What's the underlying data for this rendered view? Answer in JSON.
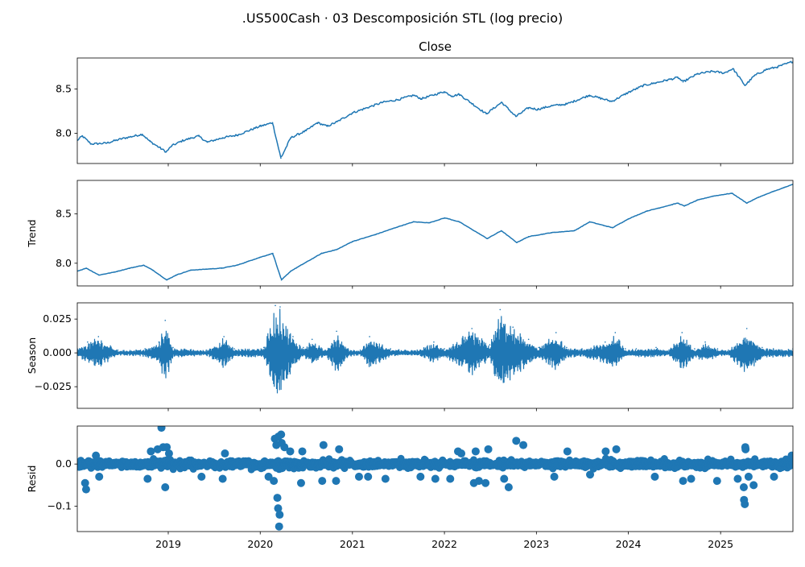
{
  "figure": {
    "suptitle": ".US500Cash · 03 Descomposición STL (log precio)"
  },
  "colors": {
    "line": "#1f77b4",
    "axes": "#000000",
    "background": "#ffffff"
  },
  "chart_data": [
    {
      "id": "close",
      "type": "line",
      "title": "Close",
      "ylabel": "",
      "xlim": [
        "2018-01-05",
        "2025-10-15"
      ],
      "ylim": [
        7.66,
        8.85
      ],
      "yticks": [
        8.0,
        8.5
      ],
      "ytick_labels": [
        "8.0",
        "8.5"
      ],
      "grid": false,
      "x": [
        "2018-01-05",
        "2018-01-25",
        "2018-03-01",
        "2018-05-01",
        "2018-07-01",
        "2018-09-20",
        "2018-10-20",
        "2018-12-24",
        "2019-01-15",
        "2019-03-01",
        "2019-05-01",
        "2019-06-05",
        "2019-08-05",
        "2019-10-01",
        "2019-12-31",
        "2020-02-19",
        "2020-03-23",
        "2020-05-01",
        "2020-07-01",
        "2020-08-15",
        "2020-09-23",
        "2020-11-01",
        "2020-12-31",
        "2021-03-01",
        "2021-05-01",
        "2021-07-01",
        "2021-09-01",
        "2021-10-01",
        "2021-12-31",
        "2022-02-01",
        "2022-03-01",
        "2022-06-16",
        "2022-08-16",
        "2022-10-12",
        "2022-12-01",
        "2023-01-05",
        "2023-03-01",
        "2023-05-01",
        "2023-07-31",
        "2023-10-27",
        "2023-12-31",
        "2024-03-01",
        "2024-04-19",
        "2024-06-01",
        "2024-07-16",
        "2024-08-05",
        "2024-10-01",
        "2024-12-01",
        "2025-01-15",
        "2025-02-19",
        "2025-04-08",
        "2025-05-15",
        "2025-07-01",
        "2025-08-15",
        "2025-10-15"
      ],
      "values": [
        7.92,
        7.97,
        7.88,
        7.89,
        7.94,
        7.99,
        7.91,
        7.79,
        7.86,
        7.92,
        7.97,
        7.9,
        7.95,
        7.98,
        8.08,
        8.12,
        7.72,
        7.95,
        8.03,
        8.12,
        8.08,
        8.13,
        8.23,
        8.29,
        8.35,
        8.38,
        8.43,
        8.39,
        8.47,
        8.42,
        8.44,
        8.22,
        8.35,
        8.19,
        8.29,
        8.27,
        8.31,
        8.33,
        8.43,
        8.36,
        8.46,
        8.54,
        8.57,
        8.6,
        8.63,
        8.58,
        8.67,
        8.7,
        8.68,
        8.73,
        8.54,
        8.65,
        8.72,
        8.75,
        8.81
      ]
    },
    {
      "id": "trend",
      "type": "line",
      "title": "",
      "ylabel": "Trend",
      "xlim": [
        "2018-01-05",
        "2025-10-15"
      ],
      "ylim": [
        7.77,
        8.84
      ],
      "yticks": [
        8.0,
        8.5
      ],
      "ytick_labels": [
        "8.0",
        "8.5"
      ],
      "grid": false,
      "x": [
        "2018-01-05",
        "2018-02-10",
        "2018-04-01",
        "2018-06-01",
        "2018-08-01",
        "2018-09-25",
        "2018-11-01",
        "2018-12-26",
        "2019-02-01",
        "2019-04-01",
        "2019-06-01",
        "2019-08-01",
        "2019-10-01",
        "2019-12-31",
        "2020-02-20",
        "2020-03-25",
        "2020-05-01",
        "2020-07-01",
        "2020-09-01",
        "2020-11-01",
        "2021-01-01",
        "2021-04-01",
        "2021-07-01",
        "2021-09-01",
        "2021-11-01",
        "2022-01-03",
        "2022-03-01",
        "2022-06-20",
        "2022-08-15",
        "2022-10-15",
        "2022-12-01",
        "2023-03-01",
        "2023-06-01",
        "2023-08-01",
        "2023-10-30",
        "2024-01-01",
        "2024-03-15",
        "2024-05-01",
        "2024-07-15",
        "2024-08-10",
        "2024-10-01",
        "2024-12-01",
        "2025-02-15",
        "2025-04-15",
        "2025-06-01",
        "2025-08-01",
        "2025-10-15"
      ],
      "values": [
        7.92,
        7.95,
        7.88,
        7.91,
        7.95,
        7.98,
        7.93,
        7.83,
        7.88,
        7.93,
        7.94,
        7.95,
        7.98,
        8.06,
        8.1,
        7.83,
        7.92,
        8.01,
        8.1,
        8.14,
        8.22,
        8.29,
        8.37,
        8.42,
        8.41,
        8.46,
        8.42,
        8.25,
        8.33,
        8.21,
        8.27,
        8.31,
        8.33,
        8.42,
        8.36,
        8.45,
        8.53,
        8.56,
        8.61,
        8.58,
        8.64,
        8.68,
        8.71,
        8.61,
        8.67,
        8.73,
        8.8
      ]
    },
    {
      "id": "season",
      "type": "line",
      "title": "",
      "ylabel": "Season",
      "xlim": [
        "2018-01-05",
        "2025-10-15"
      ],
      "ylim": [
        -0.041,
        0.037
      ],
      "yticks": [
        -0.025,
        0.0,
        0.025
      ],
      "ytick_labels": [
        "−0.025",
        "0.000",
        "0.025"
      ],
      "grid": false,
      "x": [
        "2018-01-05",
        "2018-02-15",
        "2018-03-30",
        "2018-06-15",
        "2018-10-01",
        "2018-11-25",
        "2018-12-20",
        "2019-01-20",
        "2019-06-01",
        "2019-08-10",
        "2019-09-20",
        "2020-01-15",
        "2020-03-01",
        "2020-03-20",
        "2020-05-10",
        "2020-06-20",
        "2020-07-25",
        "2020-09-15",
        "2020-10-30",
        "2020-12-15",
        "2021-02-01",
        "2021-03-10",
        "2021-06-01",
        "2021-09-15",
        "2021-11-20",
        "2022-01-01",
        "2022-03-15",
        "2022-04-20",
        "2022-06-30",
        "2022-08-10",
        "2022-09-30",
        "2022-12-01",
        "2023-01-10",
        "2023-03-20",
        "2023-05-01",
        "2023-07-01",
        "2023-10-01",
        "2023-11-10",
        "2023-12-20",
        "2024-02-01",
        "2024-04-20",
        "2024-06-10",
        "2024-08-01",
        "2024-09-20",
        "2024-11-01",
        "2024-12-20",
        "2025-02-01",
        "2025-04-15",
        "2025-06-15",
        "2025-10-15"
      ],
      "values": [
        0.003,
        0.008,
        0.012,
        0.002,
        0.003,
        0.008,
        0.024,
        0.004,
        0.002,
        0.012,
        0.003,
        0.004,
        0.035,
        0.034,
        0.012,
        0.004,
        0.01,
        0.002,
        0.016,
        0.003,
        0.002,
        0.012,
        0.003,
        0.002,
        0.008,
        0.003,
        0.012,
        0.018,
        0.006,
        0.032,
        0.019,
        0.01,
        0.004,
        0.015,
        0.004,
        0.003,
        0.008,
        0.015,
        0.003,
        0.003,
        0.004,
        0.002,
        0.015,
        0.003,
        0.008,
        0.003,
        0.002,
        0.018,
        0.004,
        0.003
      ],
      "oscillation": "rapid symmetric oscillation about 0; values give the local amplitude envelope"
    },
    {
      "id": "resid",
      "type": "scatter",
      "title": "",
      "ylabel": "Resid",
      "xlim": [
        "2018-01-05",
        "2025-10-15"
      ],
      "ylim": [
        -0.16,
        0.09
      ],
      "yticks": [
        -0.1,
        0.0
      ],
      "ytick_labels": [
        "−0.1",
        "0.0"
      ],
      "grid": false,
      "xtick_labels": [
        "2019",
        "2020",
        "2021",
        "2022",
        "2023",
        "2024",
        "2025"
      ],
      "x": [
        "2018-02-05",
        "2018-02-09",
        "2018-03-20",
        "2018-04-02",
        "2018-10-11",
        "2018-10-24",
        "2018-11-20",
        "2018-12-05",
        "2018-12-12",
        "2018-12-20",
        "2018-12-26",
        "2019-01-04",
        "2019-05-13",
        "2019-08-05",
        "2019-08-14",
        "2020-02-03",
        "2020-02-24",
        "2020-02-28",
        "2020-03-05",
        "2020-03-09",
        "2020-03-12",
        "2020-03-13",
        "2020-03-16",
        "2020-03-18",
        "2020-03-24",
        "2020-03-26",
        "2020-04-06",
        "2020-04-29",
        "2020-06-11",
        "2020-06-16",
        "2020-09-03",
        "2020-09-08",
        "2020-10-28",
        "2020-11-09",
        "2021-01-27",
        "2021-03-04",
        "2021-05-12",
        "2021-09-28",
        "2021-11-26",
        "2022-01-24",
        "2022-02-24",
        "2022-03-09",
        "2022-04-28",
        "2022-05-05",
        "2022-05-18",
        "2022-06-13",
        "2022-06-24",
        "2022-08-26",
        "2022-09-13",
        "2022-10-13",
        "2022-11-10",
        "2023-03-13",
        "2023-05-04",
        "2023-08-02",
        "2023-10-03",
        "2023-11-14",
        "2024-04-15",
        "2024-08-05",
        "2024-09-06",
        "2024-12-18",
        "2025-03-10",
        "2025-04-03",
        "2025-04-04",
        "2025-04-07",
        "2025-04-09",
        "2025-04-10",
        "2025-04-22",
        "2025-05-12",
        "2025-08-01",
        "2025-10-10"
      ],
      "values": [
        -0.045,
        -0.06,
        0.02,
        -0.03,
        -0.035,
        0.03,
        0.035,
        0.086,
        0.04,
        -0.055,
        0.04,
        0.025,
        -0.03,
        -0.035,
        0.025,
        -0.03,
        -0.04,
        0.06,
        0.045,
        -0.08,
        -0.105,
        0.065,
        -0.148,
        -0.12,
        0.07,
        0.05,
        0.04,
        0.03,
        -0.045,
        0.03,
        -0.04,
        0.045,
        -0.04,
        0.035,
        -0.03,
        -0.03,
        -0.035,
        -0.03,
        -0.035,
        -0.035,
        0.03,
        0.025,
        -0.045,
        0.03,
        -0.04,
        -0.045,
        0.035,
        -0.035,
        -0.055,
        0.055,
        0.045,
        -0.03,
        0.03,
        -0.025,
        0.03,
        0.035,
        -0.03,
        -0.04,
        -0.035,
        -0.04,
        -0.035,
        -0.055,
        -0.085,
        -0.095,
        0.04,
        0.035,
        -0.03,
        -0.05,
        -0.03,
        0.02
      ],
      "note": "dense band of small residuals around 0 between the listed points"
    }
  ]
}
